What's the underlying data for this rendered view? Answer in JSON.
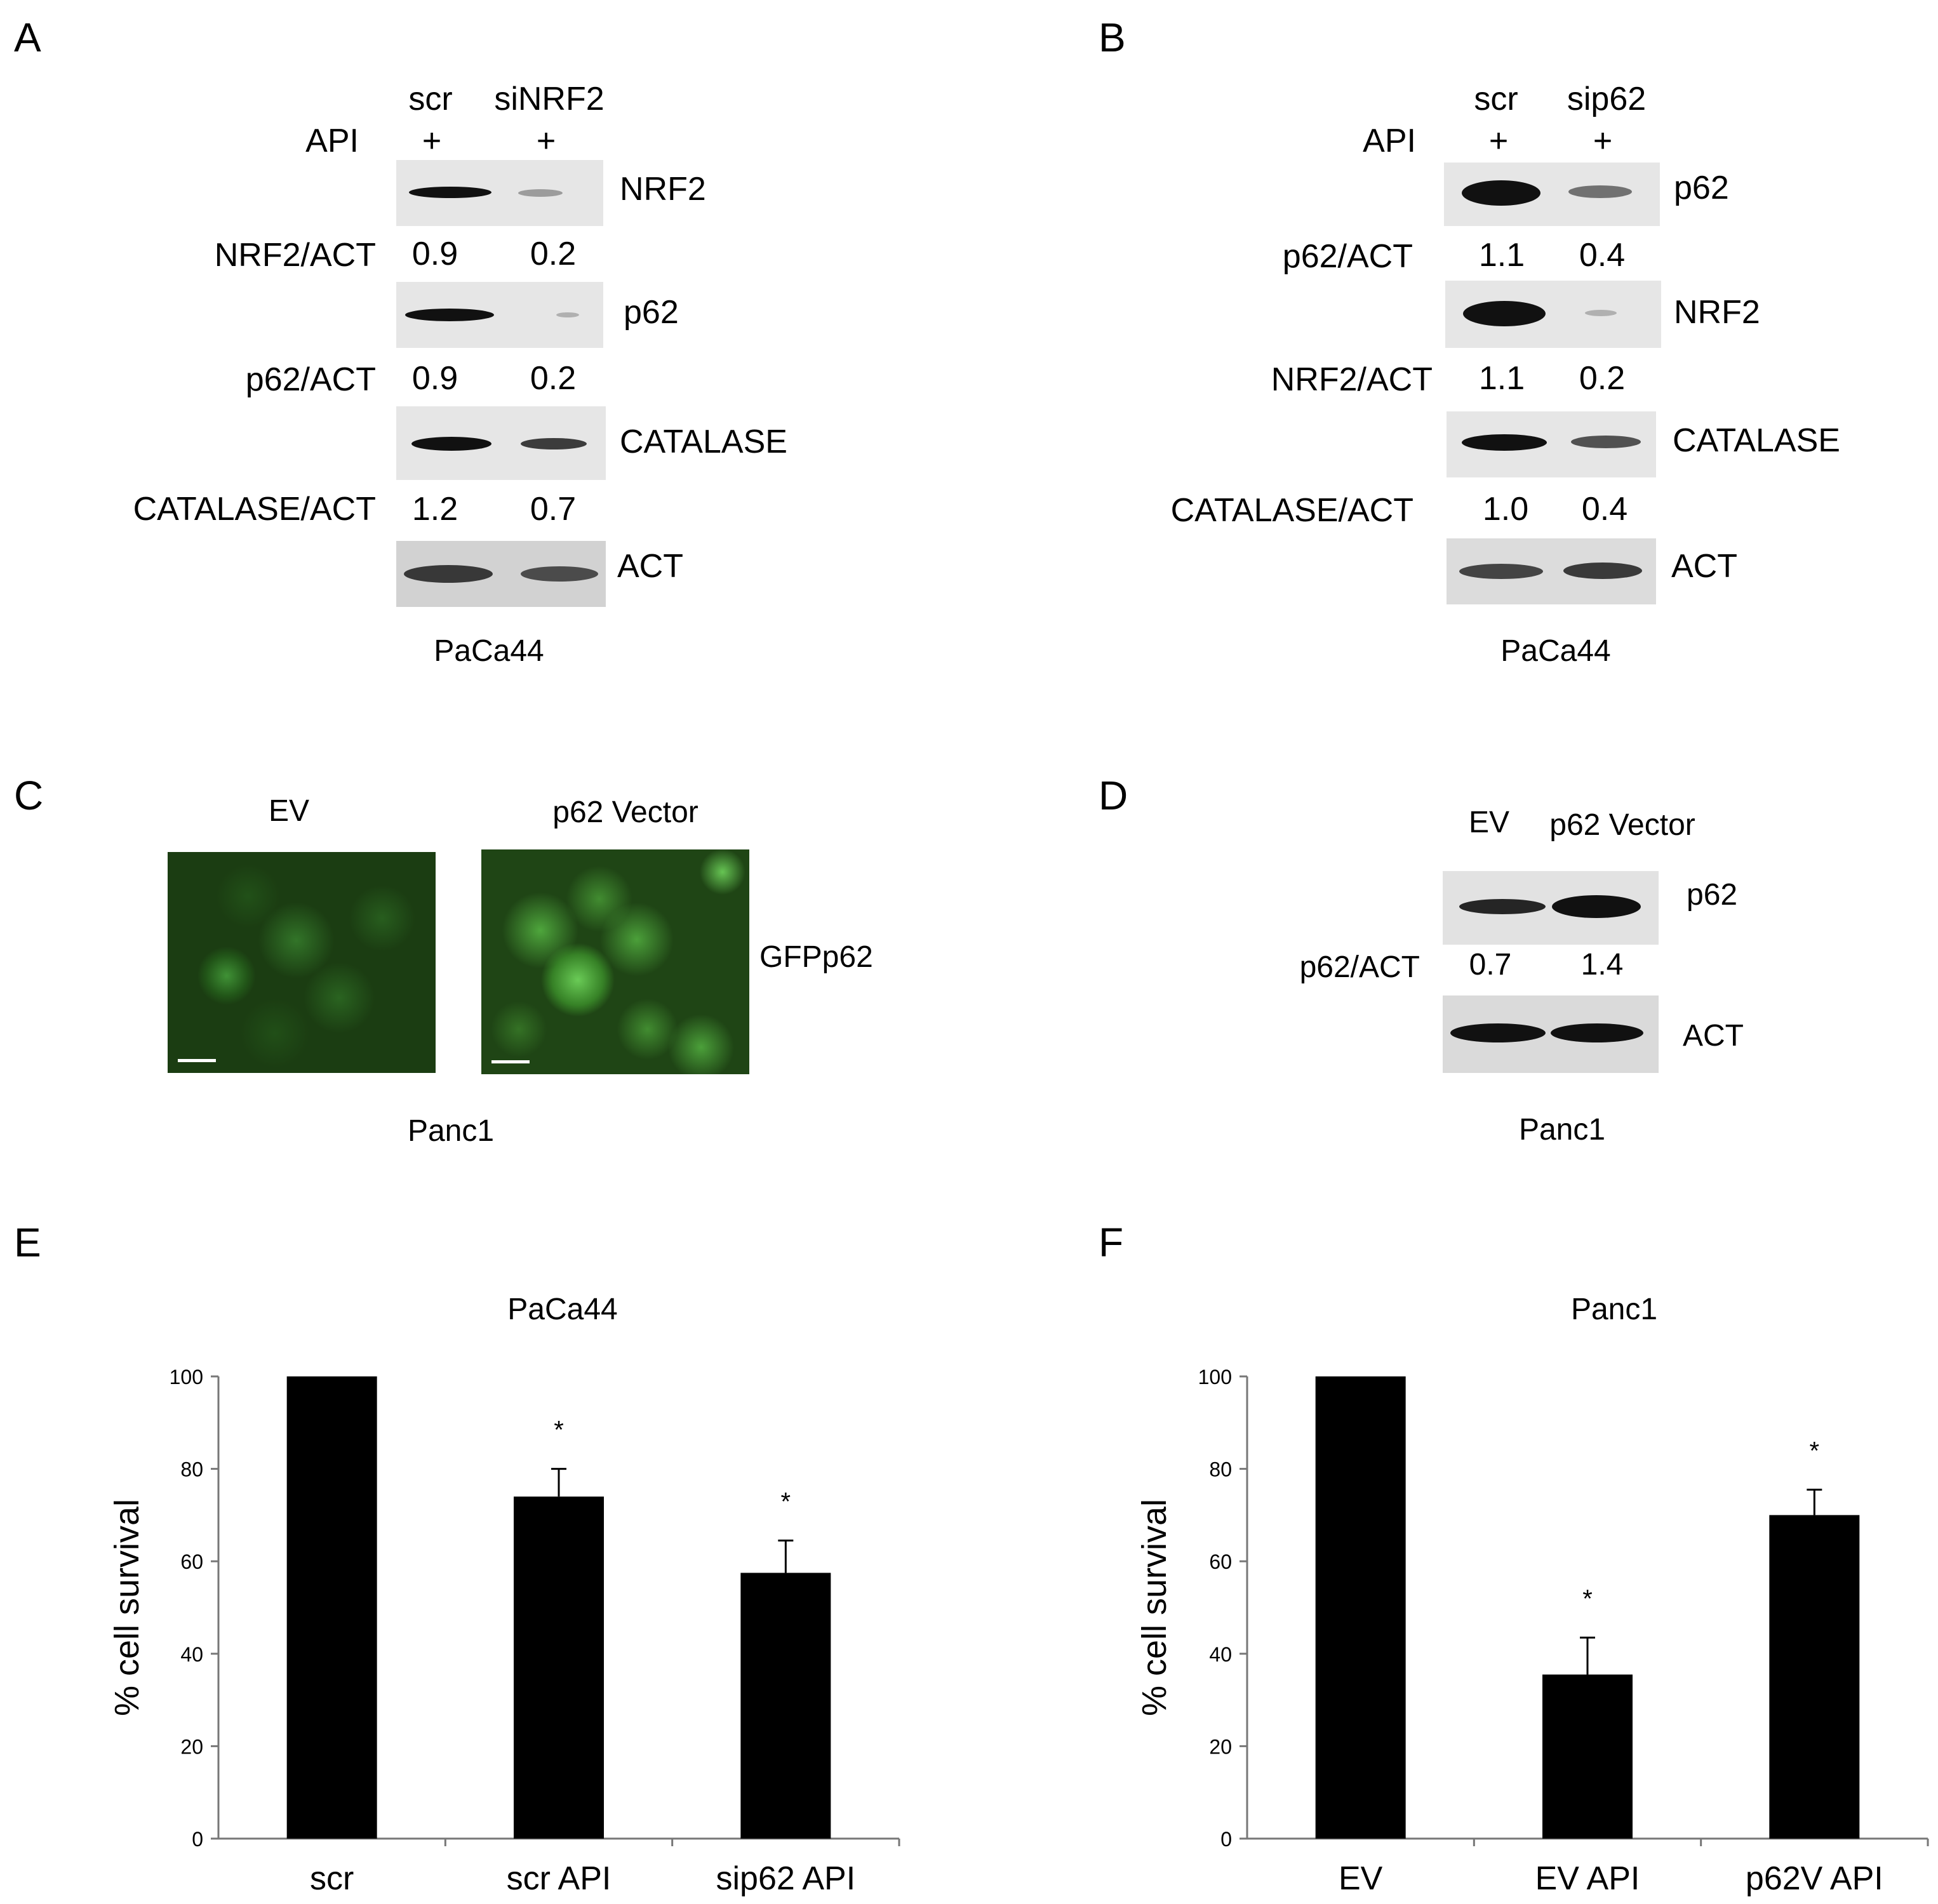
{
  "panels": {
    "A": {
      "letter": "A",
      "col_labels": [
        "scr",
        "siNRF2"
      ],
      "treat_label": "API",
      "treat_marks": [
        "+",
        "+"
      ],
      "blots": [
        {
          "protein": "NRF2",
          "ratio_label": "NRF2/ACT",
          "ratios": [
            "0.9",
            "0.2"
          ],
          "intensity": [
            0.95,
            0.18
          ]
        },
        {
          "protein": "p62",
          "ratio_label": "p62/ACT",
          "ratios": [
            "0.9",
            "0.2"
          ],
          "intensity": [
            0.95,
            0.1
          ]
        },
        {
          "protein": "CATALASE",
          "ratio_label": "CATALASE/ACT",
          "ratios": [
            "1.2",
            "0.7"
          ],
          "intensity": [
            0.9,
            0.7
          ]
        },
        {
          "protein": "ACT",
          "ratio_label": "",
          "ratios": [],
          "intensity": [
            0.85,
            0.75
          ]
        }
      ],
      "cell_line": "PaCa44"
    },
    "B": {
      "letter": "B",
      "col_labels": [
        "scr",
        "sip62"
      ],
      "treat_label": "API",
      "treat_marks": [
        "+",
        "+"
      ],
      "blots": [
        {
          "protein": "p62",
          "ratio_label": "p62/ACT",
          "ratios": [
            "1.1",
            "0.4"
          ],
          "intensity": [
            0.95,
            0.35
          ]
        },
        {
          "protein": "NRF2",
          "ratio_label": "NRF2/ACT",
          "ratios": [
            "1.1",
            "0.2"
          ],
          "intensity": [
            0.95,
            0.12
          ]
        },
        {
          "protein": "CATALASE",
          "ratio_label": "CATALASE/ACT",
          "ratios": [
            "1.0",
            "0.4"
          ],
          "intensity": [
            0.9,
            0.55
          ]
        },
        {
          "protein": "ACT",
          "ratio_label": "",
          "ratios": [],
          "intensity": [
            0.8,
            0.85
          ]
        }
      ],
      "cell_line": "PaCa44"
    },
    "C": {
      "letter": "C",
      "image_labels": [
        "EV",
        "p62 Vector"
      ],
      "side_label": "GFPp62",
      "cell_line": "Panc1"
    },
    "D": {
      "letter": "D",
      "col_labels": [
        "EV",
        "p62 Vector"
      ],
      "blots": [
        {
          "protein": "p62",
          "ratio_label": "p62/ACT",
          "ratios": [
            "0.7",
            "1.4"
          ],
          "intensity": [
            0.8,
            0.95
          ]
        },
        {
          "protein": "ACT",
          "ratio_label": "",
          "ratios": [],
          "intensity": [
            0.95,
            0.95
          ]
        }
      ],
      "cell_line": "Panc1"
    },
    "E": {
      "letter": "E"
    },
    "F": {
      "letter": "F"
    }
  },
  "chart_data": [
    {
      "type": "bar",
      "title": "PaCa44",
      "ylabel": "% cell survival",
      "xlabel": "",
      "categories": [
        "scr",
        "scr API",
        "sip62 API"
      ],
      "values": [
        100,
        74,
        57.5
      ],
      "errors": [
        0,
        6,
        7
      ],
      "significance": [
        "",
        "*",
        "*"
      ],
      "ylim": [
        0,
        100
      ],
      "yticks": [
        0,
        20,
        40,
        60,
        80,
        100
      ],
      "bar_color": "#000000"
    },
    {
      "type": "bar",
      "title": "Panc1",
      "ylabel": "% cell survival",
      "xlabel": "",
      "categories": [
        "EV",
        "EV API",
        "p62V API"
      ],
      "values": [
        100,
        35.5,
        70
      ],
      "errors": [
        0,
        8,
        5.5
      ],
      "significance": [
        "",
        "*",
        "*"
      ],
      "ylim": [
        0,
        100
      ],
      "yticks": [
        0,
        20,
        40,
        60,
        80,
        100
      ],
      "bar_color": "#000000"
    }
  ]
}
